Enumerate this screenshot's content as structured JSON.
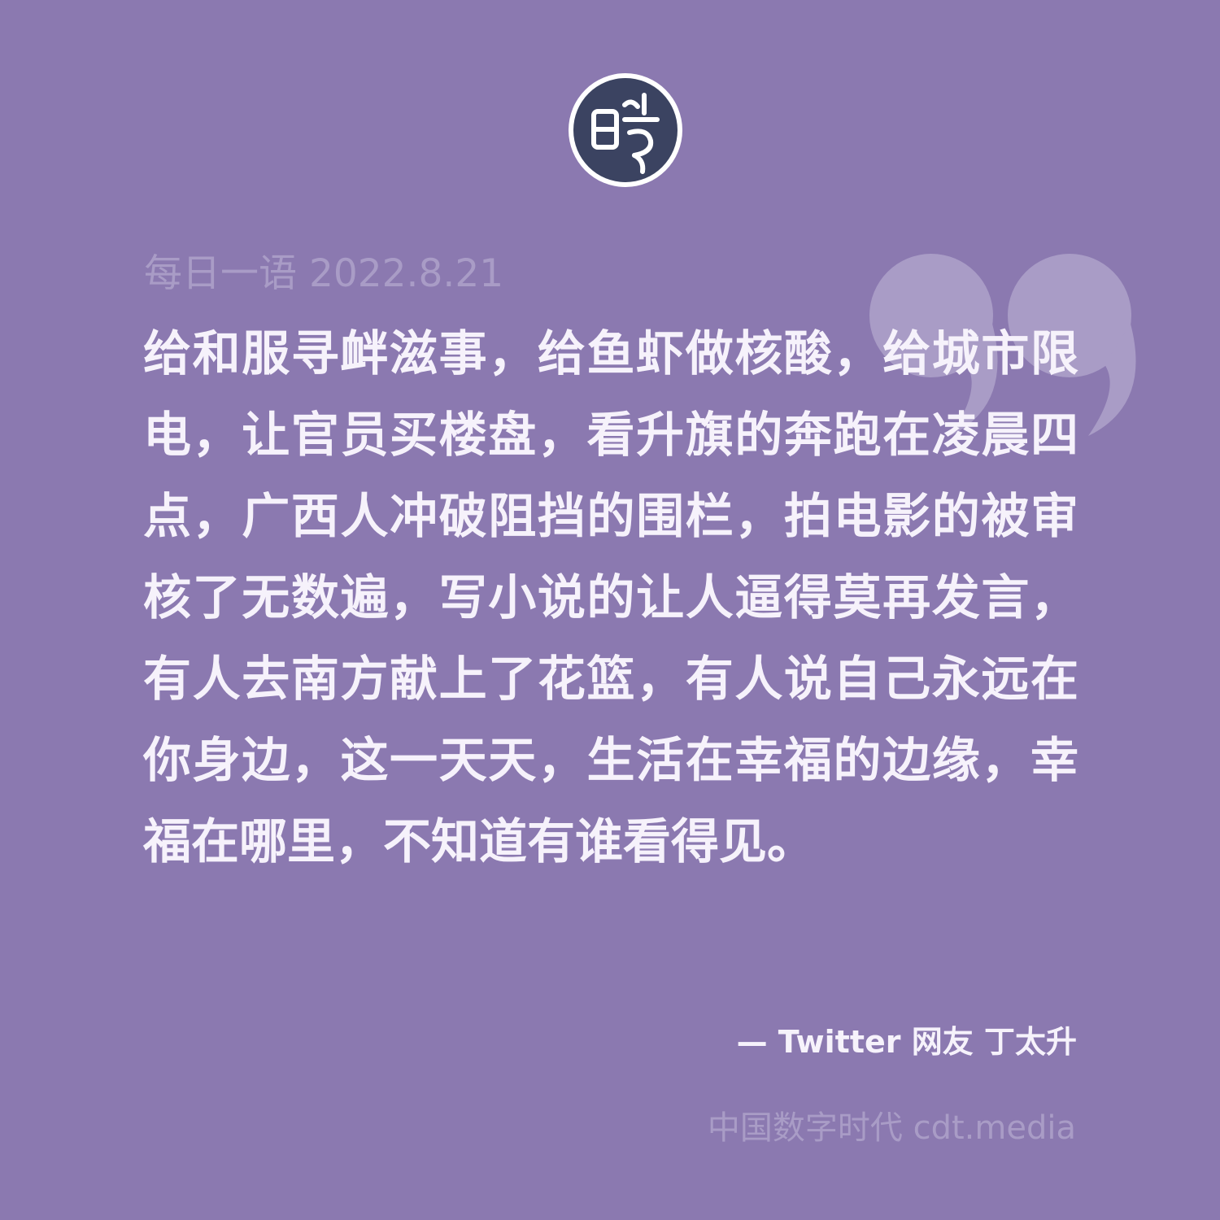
{
  "header": {
    "logo_icon": "cdt-seal-logo-icon",
    "date_label": "每日一语 2022.8.21"
  },
  "quote": {
    "icon": "closing-quote-mark-icon",
    "text": "给和服寻衅滋事，给鱼虾做核酸，给城市限电，让官员买楼盘，看升旗的奔跑在凌晨四点，广西人冲破阻挡的围栏，拍电影的被审核了无数遍，写小说的让人逼得莫再发言，有人去南方献上了花篮，有人说自己永远在你身边，这一天天，生活在幸福的边缘，幸福在哪里，不知道有谁看得见。",
    "attribution": "— Twitter 网友 丁太升"
  },
  "footer": {
    "site": "中国数字时代 cdt.media"
  },
  "colors": {
    "background": "#8b79b0",
    "text": "#f6f2fb",
    "muted": "#a99cc6",
    "logo_fill": "#3b4361",
    "quote_mark": "#a99cc6"
  }
}
